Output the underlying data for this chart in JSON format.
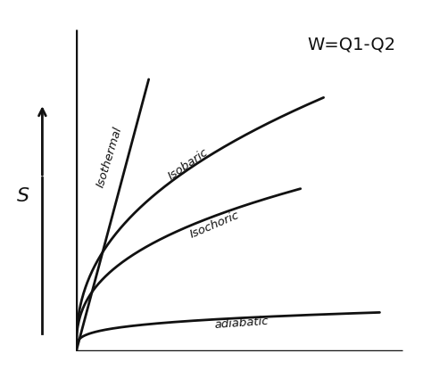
{
  "title": "W=Q1-Q2",
  "title_fontsize": 14,
  "background_color": "#ffffff",
  "grid_color": "#c8c8d0",
  "line_color": "#111111",
  "line_width": 2.0,
  "label_fontsize": 9.5,
  "xlim": [
    0,
    1.0
  ],
  "ylim": [
    0,
    1.0
  ],
  "isothermal_label": "Isothermal",
  "isobaric_label": "Isobaric",
  "isochoric_label": "Isochoric",
  "adiabatic_label": "adiabatic"
}
